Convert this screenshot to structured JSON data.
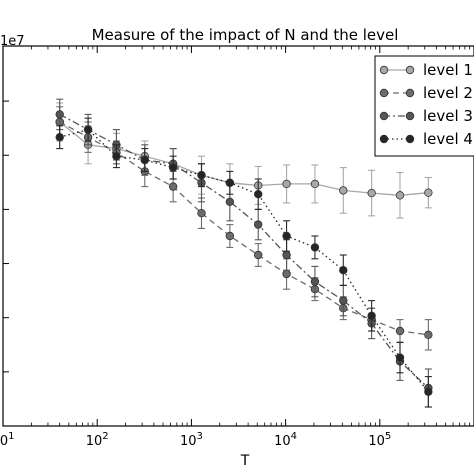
{
  "chart_data": {
    "type": "line",
    "title": "Measure of the impact of N and the level",
    "xlabel": "T",
    "ylabel": "",
    "xscale": "log",
    "xlim": [
      10,
      1000000
    ],
    "ylim": [
      0,
      1.0
    ],
    "y_multiplier_label": "1e7",
    "x_tick_labels": [
      "10^1",
      "10^2",
      "10^3",
      "10^4",
      "10^5"
    ],
    "x_ticks": [
      10,
      100,
      1000,
      10000,
      100000
    ],
    "grid": false,
    "legend_position": "top-right",
    "x": [
      40,
      80,
      160,
      320,
      640,
      1280,
      2560,
      5120,
      10240,
      20480,
      40960,
      81920,
      163840,
      327680
    ],
    "series": [
      {
        "name": "level 1",
        "color": "#a8a8a8",
        "linestyle": "solid",
        "values": [
          0.8,
          0.74,
          0.73,
          0.71,
          0.69,
          0.66,
          0.64,
          0.633,
          0.637,
          0.637,
          0.62,
          0.613,
          0.607,
          0.614
        ],
        "err": [
          0.05,
          0.05,
          0.04,
          0.04,
          0.04,
          0.05,
          0.05,
          0.05,
          0.05,
          0.05,
          0.06,
          0.06,
          0.06,
          0.04
        ]
      },
      {
        "name": "level 2",
        "color": "#6c6c6c",
        "linestyle": "dashed",
        "values": [
          0.8,
          0.76,
          0.72,
          0.67,
          0.63,
          0.56,
          0.5,
          0.45,
          0.4,
          0.36,
          0.31,
          0.28,
          0.25,
          0.24
        ],
        "err": [
          0.04,
          0.04,
          0.03,
          0.04,
          0.04,
          0.04,
          0.03,
          0.03,
          0.04,
          0.03,
          0.03,
          0.03,
          0.03,
          0.04
        ]
      },
      {
        "name": "level 3",
        "color": "#555555",
        "linestyle": "dashdot",
        "values": [
          0.82,
          0.78,
          0.74,
          0.7,
          0.69,
          0.64,
          0.59,
          0.53,
          0.45,
          0.38,
          0.33,
          0.27,
          0.17,
          0.1
        ],
        "err": [
          0.04,
          0.04,
          0.04,
          0.04,
          0.04,
          0.05,
          0.05,
          0.04,
          0.04,
          0.04,
          0.04,
          0.04,
          0.05,
          0.05
        ]
      },
      {
        "name": "level 4",
        "color": "#262626",
        "linestyle": "dotted",
        "values": [
          0.76,
          0.78,
          0.71,
          0.7,
          0.68,
          0.66,
          0.64,
          0.61,
          0.5,
          0.47,
          0.41,
          0.29,
          0.18,
          0.09
        ],
        "err": [
          0.03,
          0.03,
          0.03,
          0.03,
          0.03,
          0.03,
          0.03,
          0.04,
          0.04,
          0.03,
          0.04,
          0.04,
          0.04,
          0.04
        ]
      }
    ]
  }
}
